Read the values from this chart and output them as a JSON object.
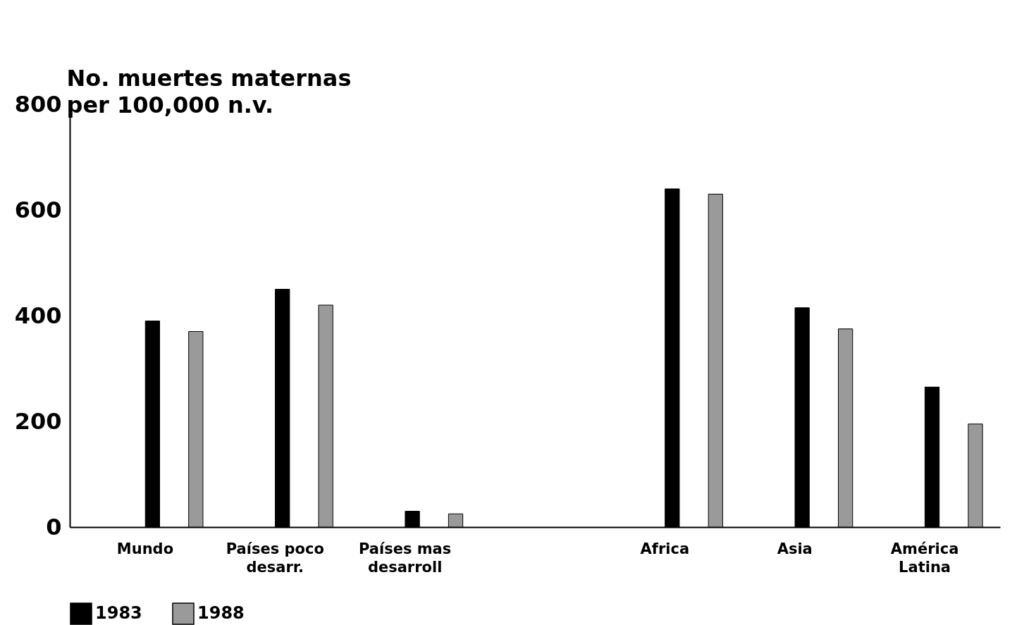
{
  "chart_data": {
    "type": "bar",
    "ylabel": "No. muertes maternas\nper 100,000 n.v.",
    "categories": [
      "Mundo",
      "Países poco\ndesarr.",
      "Países mas\ndesarroll",
      null,
      "Africa",
      "Asia",
      "América\nLatina"
    ],
    "series": [
      {
        "name": "1983",
        "color": "#000000",
        "values": [
          390,
          450,
          30,
          null,
          640,
          415,
          265
        ]
      },
      {
        "name": "1988",
        "color": "#9a9a9a",
        "values": [
          370,
          420,
          25,
          null,
          630,
          375,
          195
        ]
      }
    ],
    "ylim": [
      0,
      800
    ],
    "yticks": [
      0,
      200,
      400,
      600,
      800
    ],
    "legend": "bottom"
  }
}
